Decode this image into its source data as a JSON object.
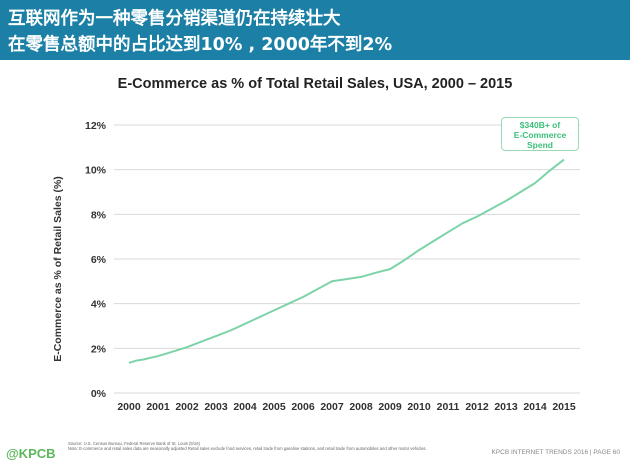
{
  "header": {
    "line1": "互联网作为一种零售分销渠道仍在持续壮大",
    "line2": "在零售总额中的占比达到10% , 2000年不到2%"
  },
  "callout": {
    "line1": "$340B+ of",
    "line2": "E-Commerce",
    "line3": "Spend"
  },
  "footer": {
    "logo": "@KPCB",
    "source_line1": "Source: U.S. Census Bureau, Federal Reserve Bank of St. Louis (5/16)",
    "source_line2": "Note: E-commerce and retail sales data are seasonally adjusted Retail sales exclude food services, retail trade from gasoline stations, and retail trade from automobiles and other motor vehicles.",
    "right": "KPCB INTERNET TRENDS 2016  |  PAGE 60"
  },
  "colors": {
    "header_bg": "#1b7fa6",
    "line": "#7dd3a8",
    "grid": "#d9d9d9",
    "callout_text": "#3bbf7a"
  },
  "chart_data": {
    "type": "line",
    "title": "E-Commerce as % of Total Retail Sales, USA, 2000 – 2015",
    "xlabel": "",
    "ylabel": "E-Commerce as % of Retail Sales (%)",
    "categories": [
      "2000",
      "2001",
      "2002",
      "2003",
      "2004",
      "2005",
      "2006",
      "2007",
      "2008",
      "2009",
      "2010",
      "2011",
      "2012",
      "2013",
      "2014",
      "2015"
    ],
    "series": [
      {
        "x": [
          2000.0,
          2000.25,
          2000.5,
          2000.75,
          2001.0,
          2001.25,
          2001.5,
          2001.75,
          2002.0,
          2002.5,
          2003.0,
          2003.5,
          2004.0,
          2004.5,
          2005.0,
          2005.5,
          2006.0,
          2006.5,
          2007.0,
          2007.5,
          2008.0,
          2008.5,
          2009.0,
          2009.5,
          2010.0,
          2010.5,
          2011.0,
          2011.5,
          2012.0,
          2012.5,
          2013.0,
          2013.5,
          2014.0,
          2014.5,
          2015.0
        ],
        "values": [
          1.35,
          1.45,
          1.5,
          1.58,
          1.65,
          1.75,
          1.85,
          1.95,
          2.05,
          2.3,
          2.55,
          2.8,
          3.1,
          3.4,
          3.7,
          4.0,
          4.3,
          4.65,
          5.0,
          5.1,
          5.2,
          5.38,
          5.55,
          5.95,
          6.4,
          6.8,
          7.2,
          7.6,
          7.9,
          8.25,
          8.6,
          9.0,
          9.4,
          9.95,
          10.45
        ]
      }
    ],
    "yticks": [
      "0%",
      "2%",
      "4%",
      "6%",
      "8%",
      "10%",
      "12%"
    ],
    "ylim": [
      0,
      12
    ],
    "xlim": [
      2000,
      2015
    ],
    "grid": true
  }
}
